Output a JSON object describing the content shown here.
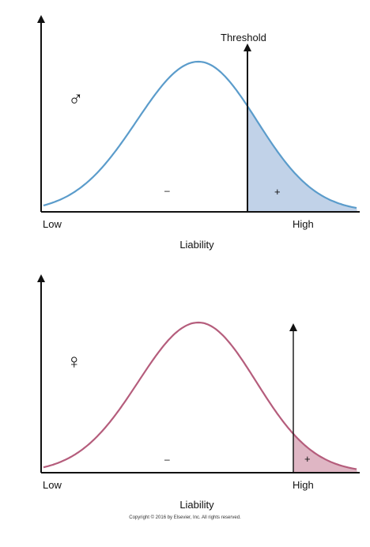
{
  "panels": [
    {
      "sex_symbol": "♂",
      "threshold_label": "Threshold",
      "minus_label": "–",
      "plus_label": "+",
      "low_label": "Low",
      "high_label": "High",
      "xlabel": "Liability",
      "curve_color": "#5b9ccb",
      "fill_color": "#c1d2e8"
    },
    {
      "sex_symbol": "♀",
      "threshold_label": "",
      "minus_label": "–",
      "plus_label": "+",
      "low_label": "Low",
      "high_label": "High",
      "xlabel": "Liability",
      "curve_color": "#b55d7c",
      "fill_color": "#dfb6c4"
    }
  ],
  "copyright": "Copyright © 2016 by Elsevier, Inc. All rights reserved."
}
